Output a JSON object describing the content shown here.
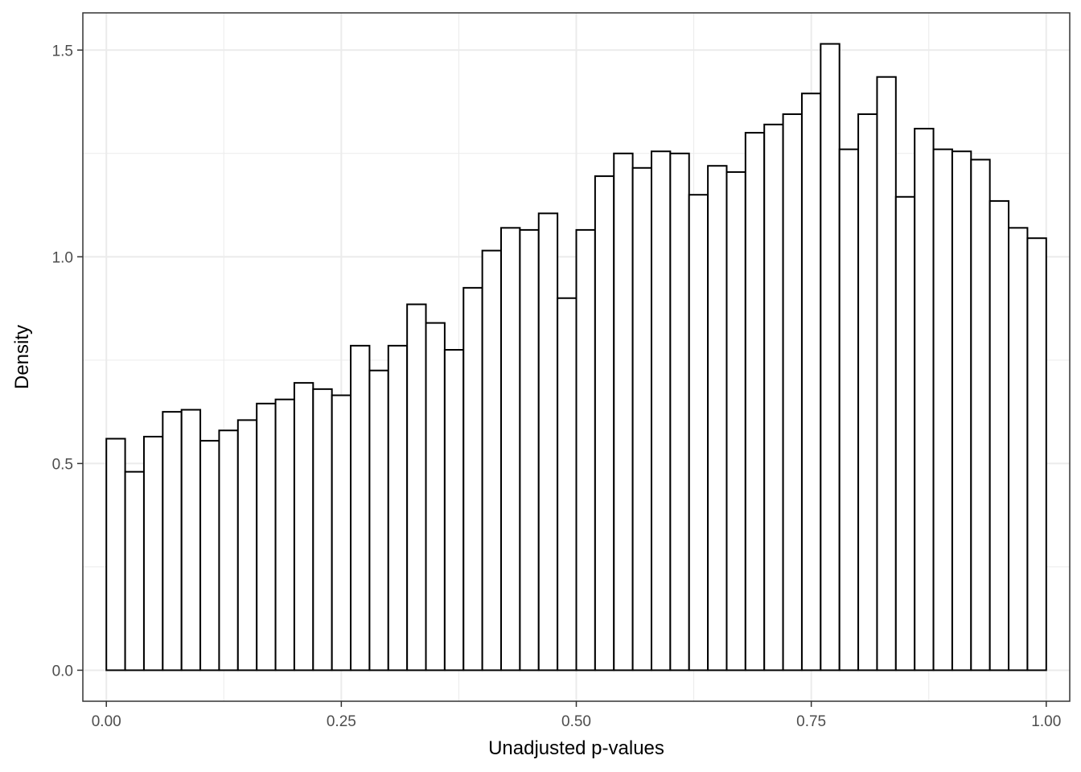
{
  "chart_data": {
    "type": "histogram",
    "xlabel": "Unadjusted p-values",
    "ylabel": "Density",
    "xlim": [
      -0.025,
      1.025
    ],
    "ylim": [
      -0.075,
      1.59
    ],
    "x_ticks": [
      {
        "value": 0.0,
        "label": "0.00"
      },
      {
        "value": 0.25,
        "label": "0.25"
      },
      {
        "value": 0.5,
        "label": "0.50"
      },
      {
        "value": 0.75,
        "label": "0.75"
      },
      {
        "value": 1.0,
        "label": "1.00"
      }
    ],
    "y_ticks": [
      {
        "value": 0.0,
        "label": "0.0"
      },
      {
        "value": 0.5,
        "label": "0.5"
      },
      {
        "value": 1.0,
        "label": "1.0"
      },
      {
        "value": 1.5,
        "label": "1.5"
      }
    ],
    "grid": true,
    "bin_width": 0.02,
    "bins_start": 0.0,
    "values": [
      0.56,
      0.48,
      0.565,
      0.625,
      0.63,
      0.555,
      0.58,
      0.605,
      0.645,
      0.655,
      0.695,
      0.68,
      0.665,
      0.785,
      0.725,
      0.785,
      0.885,
      0.84,
      0.775,
      0.925,
      1.015,
      1.07,
      1.065,
      1.105,
      0.9,
      1.065,
      1.195,
      1.25,
      1.215,
      1.255,
      1.25,
      1.15,
      1.22,
      1.205,
      1.3,
      1.32,
      1.345,
      1.395,
      1.515,
      1.26,
      1.345,
      1.435,
      1.145,
      1.31,
      1.26,
      1.255,
      1.235,
      1.135,
      1.07,
      1.045
    ],
    "bar_fill": "#ffffff",
    "bar_stroke": "#000000",
    "panel_border": "#333333",
    "grid_color": "#ebebeb"
  }
}
